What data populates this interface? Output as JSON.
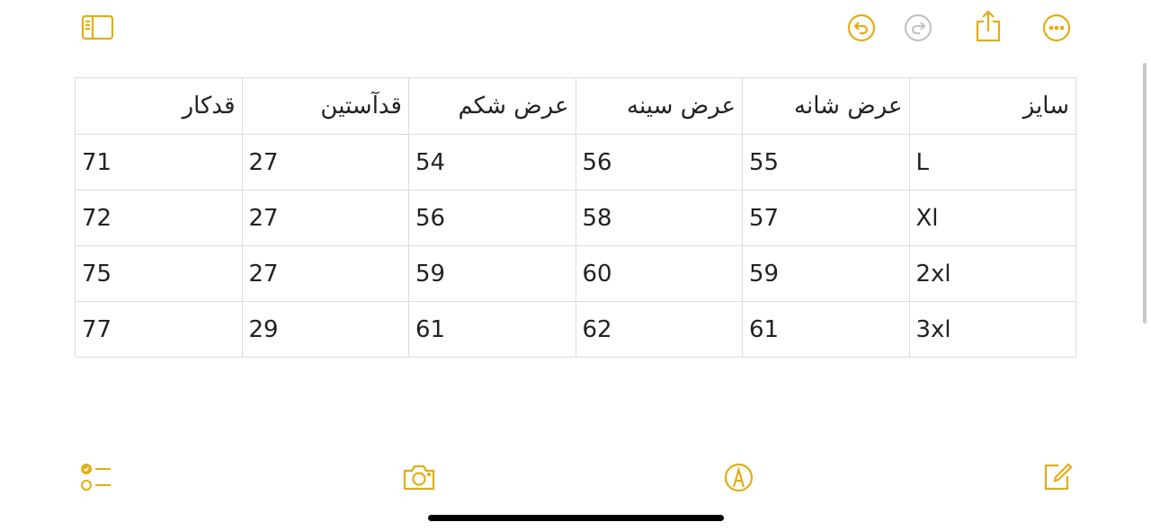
{
  "accent_color": "#E1AE14",
  "toolbar_top": {
    "left": [
      {
        "icon": "sidebar-icon"
      }
    ],
    "right": [
      {
        "icon": "undo-icon"
      },
      {
        "icon": "redo-icon",
        "disabled": true
      },
      {
        "icon": "share-icon"
      },
      {
        "icon": "more-icon"
      }
    ]
  },
  "table": {
    "headers": [
      "سایز",
      "عرض شانه",
      "عرض سینه",
      "عرض شکم",
      "قدآستین",
      "قدکار"
    ],
    "rows": [
      [
        "L",
        "55",
        "56",
        "54",
        "27",
        "71"
      ],
      [
        "Xl",
        "57",
        "58",
        "56",
        "27",
        "72"
      ],
      [
        "2xl",
        "59",
        "60",
        "59",
        "27",
        "75"
      ],
      [
        "3xl",
        "61",
        "62",
        "61",
        "29",
        "77"
      ]
    ]
  },
  "toolbar_bottom": [
    {
      "icon": "checklist-icon"
    },
    {
      "icon": "camera-icon"
    },
    {
      "icon": "markup-icon"
    },
    {
      "icon": "compose-icon"
    }
  ]
}
